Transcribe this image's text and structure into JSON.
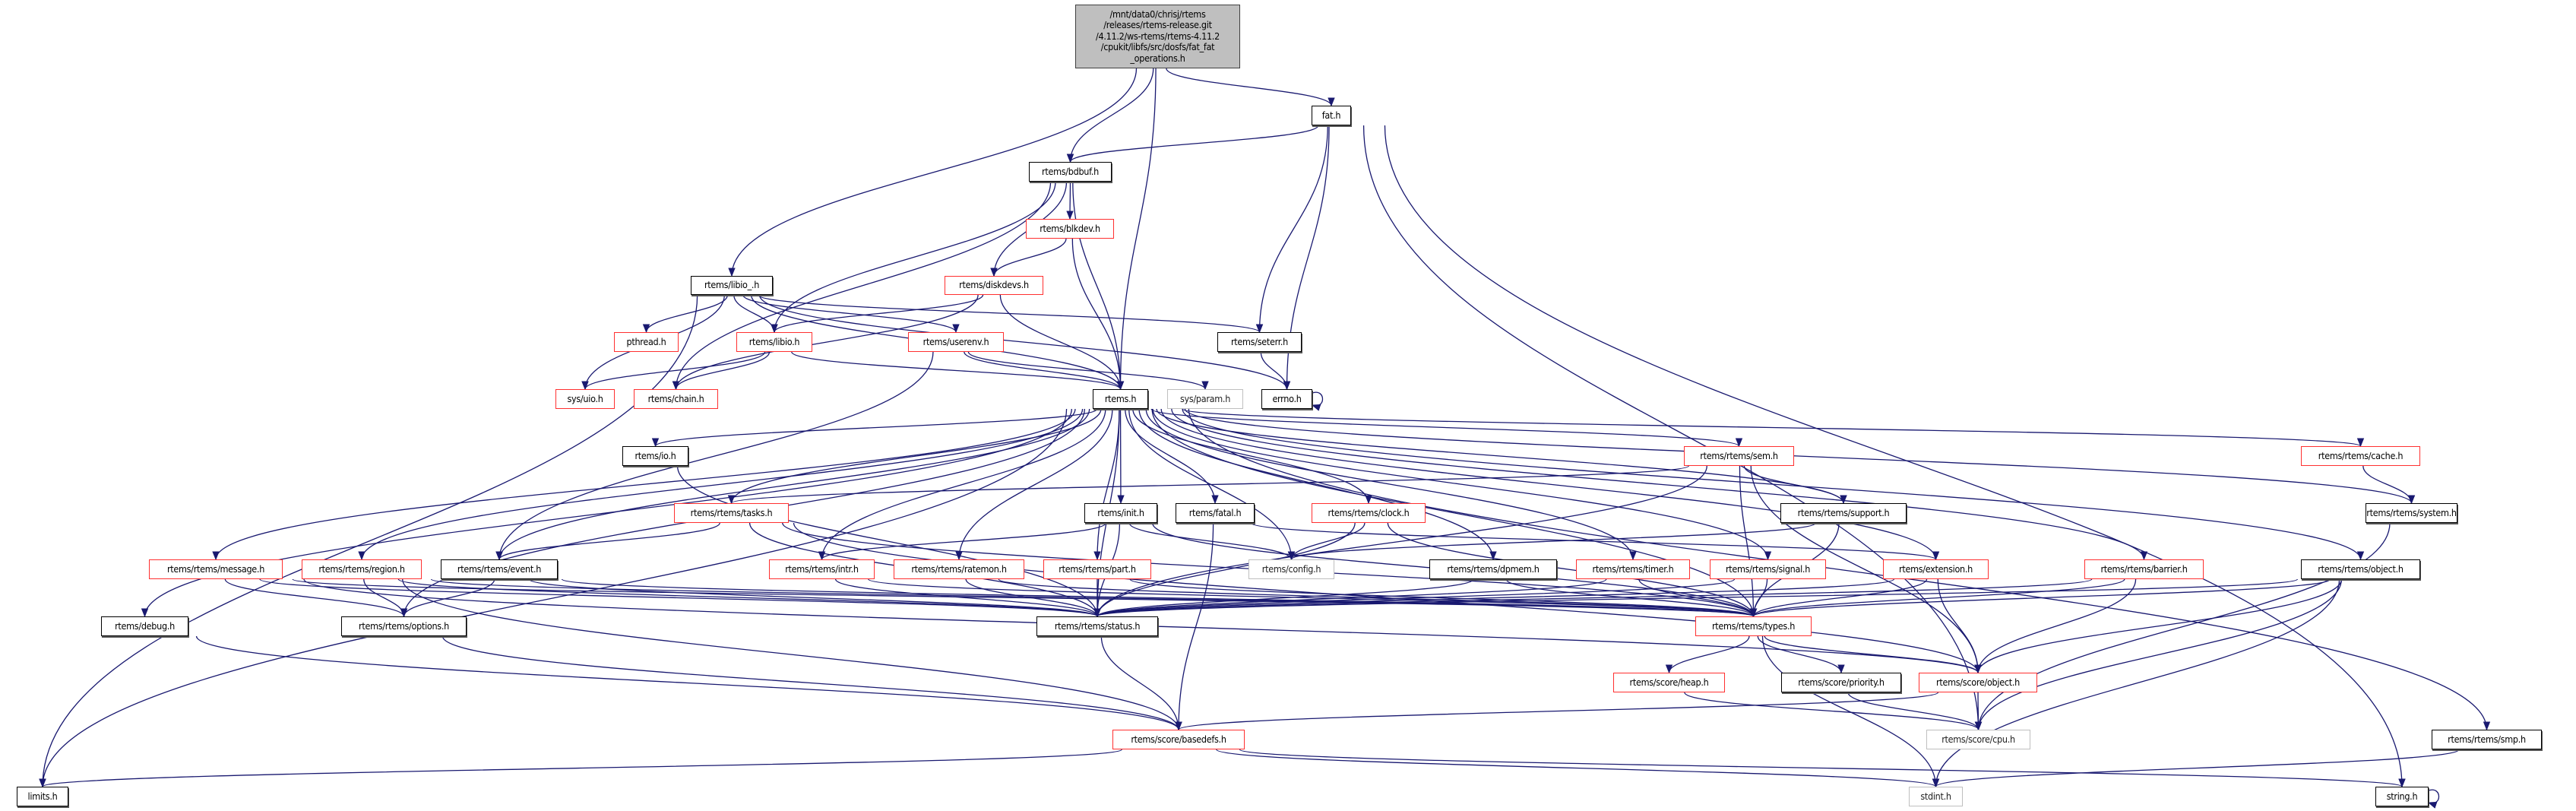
{
  "diagram": {
    "type": "include-dependency-graph",
    "colors": {
      "edge": "#191970",
      "documented_border": "#000000",
      "incomplete_border": "#ff3030",
      "undocumented_border": "#bfbfbf",
      "root_fill": "#bfbfbf"
    },
    "nodes": [
      {
        "id": "root",
        "label": "/mnt/data0/chrisj/rtems\n/releases/rtems-release.git\n/4.11.2/ws-rtems/rtems-4.11.2\n/cpukit/libfs/src/dosfs/fat_fat\n_operations.h",
        "style": "root"
      },
      {
        "id": "fat",
        "label": "fat.h",
        "style": "black"
      },
      {
        "id": "bdbuf",
        "label": "rtems/bdbuf.h",
        "style": "black"
      },
      {
        "id": "blkdev",
        "label": "rtems/blkdev.h",
        "style": "red"
      },
      {
        "id": "libio_",
        "label": "rtems/libio_.h",
        "style": "black"
      },
      {
        "id": "diskdevs",
        "label": "rtems/diskdevs.h",
        "style": "red"
      },
      {
        "id": "pthread",
        "label": "pthread.h",
        "style": "red"
      },
      {
        "id": "libio",
        "label": "rtems/libio.h",
        "style": "red"
      },
      {
        "id": "userenv",
        "label": "rtems/userenv.h",
        "style": "red"
      },
      {
        "id": "seterr",
        "label": "rtems/seterr.h",
        "style": "black"
      },
      {
        "id": "uio",
        "label": "sys/uio.h",
        "style": "red"
      },
      {
        "id": "chain",
        "label": "rtems/chain.h",
        "style": "red"
      },
      {
        "id": "rtems",
        "label": "rtems.h",
        "style": "black"
      },
      {
        "id": "param",
        "label": "sys/param.h",
        "style": "gray"
      },
      {
        "id": "errno",
        "label": "errno.h",
        "style": "black"
      },
      {
        "id": "io",
        "label": "rtems/io.h",
        "style": "black"
      },
      {
        "id": "sem",
        "label": "rtems/rtems/sem.h",
        "style": "red"
      },
      {
        "id": "cache",
        "label": "rtems/rtems/cache.h",
        "style": "red"
      },
      {
        "id": "tasks",
        "label": "rtems/rtems/tasks.h",
        "style": "red"
      },
      {
        "id": "init",
        "label": "rtems/init.h",
        "style": "black"
      },
      {
        "id": "fatal",
        "label": "rtems/fatal.h",
        "style": "black"
      },
      {
        "id": "clock",
        "label": "rtems/rtems/clock.h",
        "style": "red"
      },
      {
        "id": "support",
        "label": "rtems/rtems/support.h",
        "style": "black"
      },
      {
        "id": "system",
        "label": "rtems/rtems/system.h",
        "style": "black"
      },
      {
        "id": "message",
        "label": "rtems/rtems/message.h",
        "style": "red"
      },
      {
        "id": "region",
        "label": "rtems/rtems/region.h",
        "style": "red"
      },
      {
        "id": "event",
        "label": "rtems/rtems/event.h",
        "style": "black"
      },
      {
        "id": "intr",
        "label": "rtems/rtems/intr.h",
        "style": "red"
      },
      {
        "id": "ratemon",
        "label": "rtems/rtems/ratemon.h",
        "style": "red"
      },
      {
        "id": "part",
        "label": "rtems/rtems/part.h",
        "style": "red"
      },
      {
        "id": "config",
        "label": "rtems/config.h",
        "style": "gray"
      },
      {
        "id": "dpmem",
        "label": "rtems/rtems/dpmem.h",
        "style": "black"
      },
      {
        "id": "timer",
        "label": "rtems/rtems/timer.h",
        "style": "red"
      },
      {
        "id": "signal",
        "label": "rtems/rtems/signal.h",
        "style": "red"
      },
      {
        "id": "extension",
        "label": "rtems/extension.h",
        "style": "red"
      },
      {
        "id": "barrier",
        "label": "rtems/rtems/barrier.h",
        "style": "red"
      },
      {
        "id": "object",
        "label": "rtems/rtems/object.h",
        "style": "black"
      },
      {
        "id": "debug",
        "label": "rtems/debug.h",
        "style": "black"
      },
      {
        "id": "options",
        "label": "rtems/rtems/options.h",
        "style": "black"
      },
      {
        "id": "status",
        "label": "rtems/rtems/status.h",
        "style": "black"
      },
      {
        "id": "types",
        "label": "rtems/rtems/types.h",
        "style": "red"
      },
      {
        "id": "heap",
        "label": "rtems/score/heap.h",
        "style": "red"
      },
      {
        "id": "priority",
        "label": "rtems/score/priority.h",
        "style": "black"
      },
      {
        "id": "sobject",
        "label": "rtems/score/object.h",
        "style": "red"
      },
      {
        "id": "basedefs",
        "label": "rtems/score/basedefs.h",
        "style": "red"
      },
      {
        "id": "cpu",
        "label": "rtems/score/cpu.h",
        "style": "gray"
      },
      {
        "id": "smp",
        "label": "rtems/rtems/smp.h",
        "style": "black"
      },
      {
        "id": "limits",
        "label": "limits.h",
        "style": "black"
      },
      {
        "id": "stdint",
        "label": "stdint.h",
        "style": "gray"
      },
      {
        "id": "string",
        "label": "string.h",
        "style": "black"
      }
    ],
    "edges": [
      [
        "root",
        "libio_"
      ],
      [
        "root",
        "bdbuf"
      ],
      [
        "root",
        "rtems"
      ],
      [
        "root",
        "fat"
      ],
      [
        "fat",
        "bdbuf"
      ],
      [
        "fat",
        "seterr"
      ],
      [
        "fat",
        "errno"
      ],
      [
        "fat",
        "cpu"
      ],
      [
        "fat",
        "string"
      ],
      [
        "bdbuf",
        "libio"
      ],
      [
        "bdbuf",
        "chain"
      ],
      [
        "bdbuf",
        "blkdev"
      ],
      [
        "bdbuf",
        "diskdevs"
      ],
      [
        "bdbuf",
        "rtems"
      ],
      [
        "blkdev",
        "diskdevs"
      ],
      [
        "blkdev",
        "rtems"
      ],
      [
        "diskdevs",
        "libio"
      ],
      [
        "diskdevs",
        "chain"
      ],
      [
        "diskdevs",
        "rtems"
      ],
      [
        "libio_",
        "limits"
      ],
      [
        "libio_",
        "uio"
      ],
      [
        "libio_",
        "pthread"
      ],
      [
        "libio_",
        "libio"
      ],
      [
        "libio_",
        "rtems"
      ],
      [
        "libio_",
        "userenv"
      ],
      [
        "libio_",
        "errno"
      ],
      [
        "libio_",
        "seterr"
      ],
      [
        "libio",
        "uio"
      ],
      [
        "libio",
        "chain"
      ],
      [
        "libio",
        "rtems"
      ],
      [
        "userenv",
        "rtems"
      ],
      [
        "userenv",
        "param"
      ],
      [
        "userenv",
        "event"
      ],
      [
        "seterr",
        "errno"
      ],
      [
        "errno",
        "errno"
      ],
      [
        "rtems",
        "limits"
      ],
      [
        "rtems",
        "io"
      ],
      [
        "rtems",
        "tasks"
      ],
      [
        "rtems",
        "init"
      ],
      [
        "rtems",
        "fatal"
      ],
      [
        "rtems",
        "message"
      ],
      [
        "rtems",
        "region"
      ],
      [
        "rtems",
        "event"
      ],
      [
        "rtems",
        "options"
      ],
      [
        "rtems",
        "status"
      ],
      [
        "rtems",
        "intr"
      ],
      [
        "rtems",
        "ratemon"
      ],
      [
        "rtems",
        "part"
      ],
      [
        "rtems",
        "config"
      ],
      [
        "rtems",
        "debug"
      ],
      [
        "rtems",
        "clock"
      ],
      [
        "rtems",
        "dpmem"
      ],
      [
        "rtems",
        "timer"
      ],
      [
        "rtems",
        "signal"
      ],
      [
        "rtems",
        "extension"
      ],
      [
        "rtems",
        "barrier"
      ],
      [
        "rtems",
        "object"
      ],
      [
        "rtems",
        "types"
      ],
      [
        "rtems",
        "sem"
      ],
      [
        "rtems",
        "support"
      ],
      [
        "rtems",
        "cache"
      ],
      [
        "rtems",
        "system"
      ],
      [
        "rtems",
        "smp"
      ],
      [
        "io",
        "status"
      ],
      [
        "tasks",
        "event"
      ],
      [
        "tasks",
        "status"
      ],
      [
        "tasks",
        "types"
      ],
      [
        "tasks",
        "sobject"
      ],
      [
        "init",
        "intr"
      ],
      [
        "init",
        "config"
      ],
      [
        "init",
        "status"
      ],
      [
        "init",
        "types"
      ],
      [
        "fatal",
        "basedefs"
      ],
      [
        "fatal",
        "extension"
      ],
      [
        "message",
        "options"
      ],
      [
        "message",
        "status"
      ],
      [
        "message",
        "types"
      ],
      [
        "message",
        "sobject"
      ],
      [
        "region",
        "options"
      ],
      [
        "region",
        "status"
      ],
      [
        "region",
        "types"
      ],
      [
        "region",
        "basedefs"
      ],
      [
        "event",
        "options"
      ],
      [
        "event",
        "status"
      ],
      [
        "event",
        "types"
      ],
      [
        "intr",
        "status"
      ],
      [
        "intr",
        "types"
      ],
      [
        "ratemon",
        "status"
      ],
      [
        "ratemon",
        "types"
      ],
      [
        "part",
        "status"
      ],
      [
        "part",
        "types"
      ],
      [
        "clock",
        "config"
      ],
      [
        "clock",
        "status"
      ],
      [
        "clock",
        "types"
      ],
      [
        "dpmem",
        "status"
      ],
      [
        "dpmem",
        "types"
      ],
      [
        "timer",
        "status"
      ],
      [
        "timer",
        "types"
      ],
      [
        "signal",
        "status"
      ],
      [
        "signal",
        "types"
      ],
      [
        "extension",
        "status"
      ],
      [
        "extension",
        "types"
      ],
      [
        "extension",
        "sobject"
      ],
      [
        "barrier",
        "status"
      ],
      [
        "barrier",
        "types"
      ],
      [
        "barrier",
        "sobject"
      ],
      [
        "object",
        "status"
      ],
      [
        "object",
        "types"
      ],
      [
        "object",
        "sobject"
      ],
      [
        "object",
        "stdint"
      ],
      [
        "object",
        "cpu"
      ],
      [
        "sem",
        "tasks"
      ],
      [
        "sem",
        "support"
      ],
      [
        "sem",
        "status"
      ],
      [
        "sem",
        "types"
      ],
      [
        "sem",
        "sobject"
      ],
      [
        "support",
        "config"
      ],
      [
        "support",
        "types"
      ],
      [
        "cache",
        "system"
      ],
      [
        "system",
        "cpu"
      ],
      [
        "smp",
        "stdint"
      ],
      [
        "status",
        "basedefs"
      ],
      [
        "types",
        "heap"
      ],
      [
        "types",
        "priority"
      ],
      [
        "types",
        "sobject"
      ],
      [
        "types",
        "stdint"
      ],
      [
        "heap",
        "cpu"
      ],
      [
        "priority",
        "cpu"
      ],
      [
        "sobject",
        "cpu"
      ],
      [
        "sobject",
        "basedefs"
      ],
      [
        "options",
        "basedefs"
      ],
      [
        "debug",
        "basedefs"
      ],
      [
        "basedefs",
        "limits"
      ],
      [
        "basedefs",
        "stdint"
      ],
      [
        "basedefs",
        "string"
      ],
      [
        "string",
        "string"
      ]
    ]
  }
}
